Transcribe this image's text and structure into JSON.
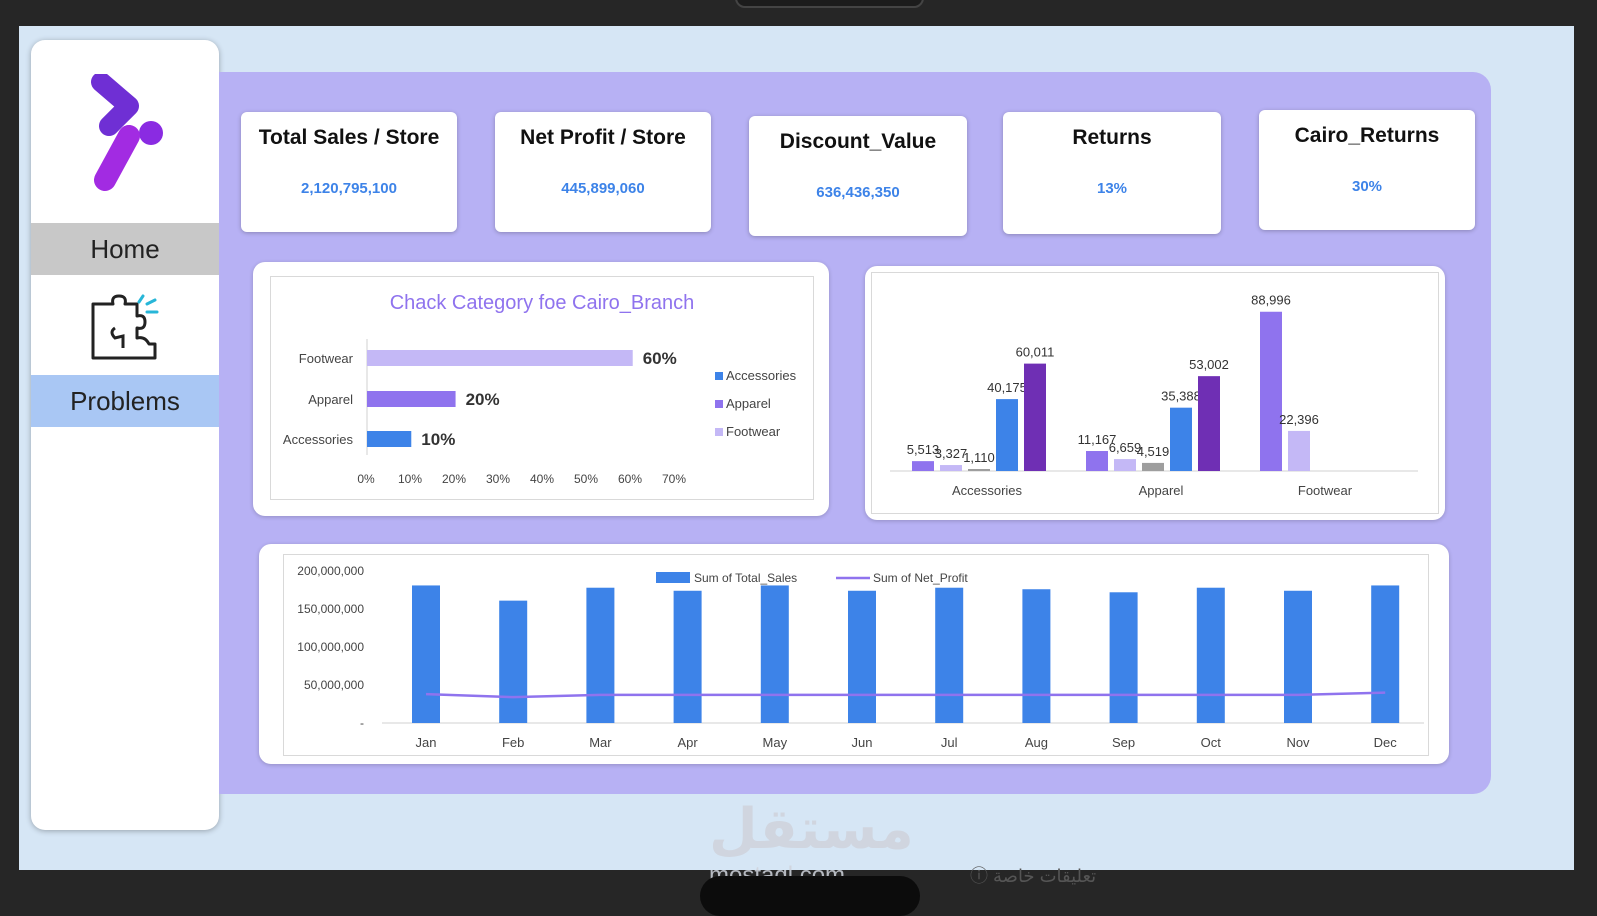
{
  "sidebar": {
    "home_label": "Home",
    "problems_label": "Problems",
    "logo_icon": "brand-logo-icon",
    "puzzle_icon": "puzzle-icon"
  },
  "kpis": [
    {
      "title": "Total Sales / Store",
      "value": "2,120,795,100"
    },
    {
      "title": "Net Profit / Store",
      "value": "445,899,060"
    },
    {
      "title": "Discount_Value",
      "value": "636,436,350"
    },
    {
      "title": "Returns",
      "value": "13%"
    },
    {
      "title": "Cairo_Returns",
      "value": "30%"
    }
  ],
  "colors": {
    "accent": "#3d83e8",
    "panel_bg": "#b7b1f4",
    "canvas_bg": "#d6e6f5",
    "sidebar_active": "#a9c7f4",
    "sidebar_home": "#c8c8c8"
  },
  "chart_data": [
    {
      "type": "bar",
      "orientation": "horizontal",
      "title": "Chack Category foe Cairo_Branch",
      "categories": [
        "Footwear",
        "Apparel",
        "Accessories"
      ],
      "values": [
        0.6,
        0.2,
        0.1
      ],
      "value_labels": [
        "60%",
        "20%",
        "10%"
      ],
      "colors": [
        "#c4b8f6",
        "#8f73ee",
        "#3d83e8"
      ],
      "xlim": [
        0,
        0.7
      ],
      "xticks": [
        "0%",
        "10%",
        "20%",
        "30%",
        "40%",
        "50%",
        "60%",
        "70%"
      ],
      "legend": [
        "Accessories",
        "Apparel",
        "Footwear"
      ],
      "legend_colors": [
        "#3d83e8",
        "#8f73ee",
        "#c4b8f6"
      ],
      "legend_position": "right"
    },
    {
      "type": "bar",
      "orientation": "vertical",
      "categories": [
        "Accessories",
        "Apparel",
        "Footwear"
      ],
      "groups": [
        {
          "category": "Accessories",
          "bars": [
            {
              "value": 5513,
              "label": "5,513",
              "color": "#8f73ee"
            },
            {
              "value": 3327,
              "label": "3,327",
              "color": "#c4b8f6"
            },
            {
              "value": 1110,
              "label": "1,110",
              "color": "#9e9e9e"
            },
            {
              "value": 40175,
              "label": "40,175",
              "color": "#3d83e8"
            },
            {
              "value": 60011,
              "label": "60,011",
              "color": "#6f2fb4"
            }
          ]
        },
        {
          "category": "Apparel",
          "bars": [
            {
              "value": 11167,
              "label": "11,167",
              "color": "#8f73ee"
            },
            {
              "value": 6659,
              "label": "6,659",
              "color": "#c4b8f6"
            },
            {
              "value": 4519,
              "label": "4,519",
              "color": "#9e9e9e"
            },
            {
              "value": 35388,
              "label": "35,388",
              "color": "#3d83e8"
            },
            {
              "value": 53002,
              "label": "53,002",
              "color": "#6f2fb4"
            }
          ]
        },
        {
          "category": "Footwear",
          "bars": [
            {
              "value": 88996,
              "label": "88,996",
              "color": "#8f73ee"
            },
            {
              "value": 22396,
              "label": "22,396",
              "color": "#c4b8f6"
            }
          ]
        }
      ],
      "ylim": [
        0,
        95000
      ]
    },
    {
      "type": "bar",
      "categories": [
        "Jan",
        "Feb",
        "Mar",
        "Apr",
        "May",
        "Jun",
        "Jul",
        "Aug",
        "Sep",
        "Oct",
        "Nov",
        "Dec"
      ],
      "series": [
        {
          "name": "Sum of Total_Sales",
          "type": "bar",
          "color": "#3d83e8",
          "values": [
            181000000,
            161000000,
            178000000,
            174000000,
            181000000,
            174000000,
            178000000,
            176000000,
            172000000,
            178000000,
            174000000,
            181000000
          ]
        },
        {
          "name": "Sum of Net_Profit",
          "type": "line",
          "color": "#8f73ee",
          "values": [
            38000000,
            34000000,
            37000000,
            37000000,
            37000000,
            37000000,
            37000000,
            37000000,
            37000000,
            37000000,
            37000000,
            40000000
          ]
        }
      ],
      "ylim": [
        0,
        200000000
      ],
      "yticks": [
        "-",
        "50,000,000",
        "100,000,000",
        "150,000,000",
        "200,000,000"
      ],
      "legend_position": "top"
    }
  ],
  "watermark": {
    "arabic": "مستقل",
    "latin": "mostaql.com"
  },
  "footer_text": "ⓘ تعليقات خاصة"
}
